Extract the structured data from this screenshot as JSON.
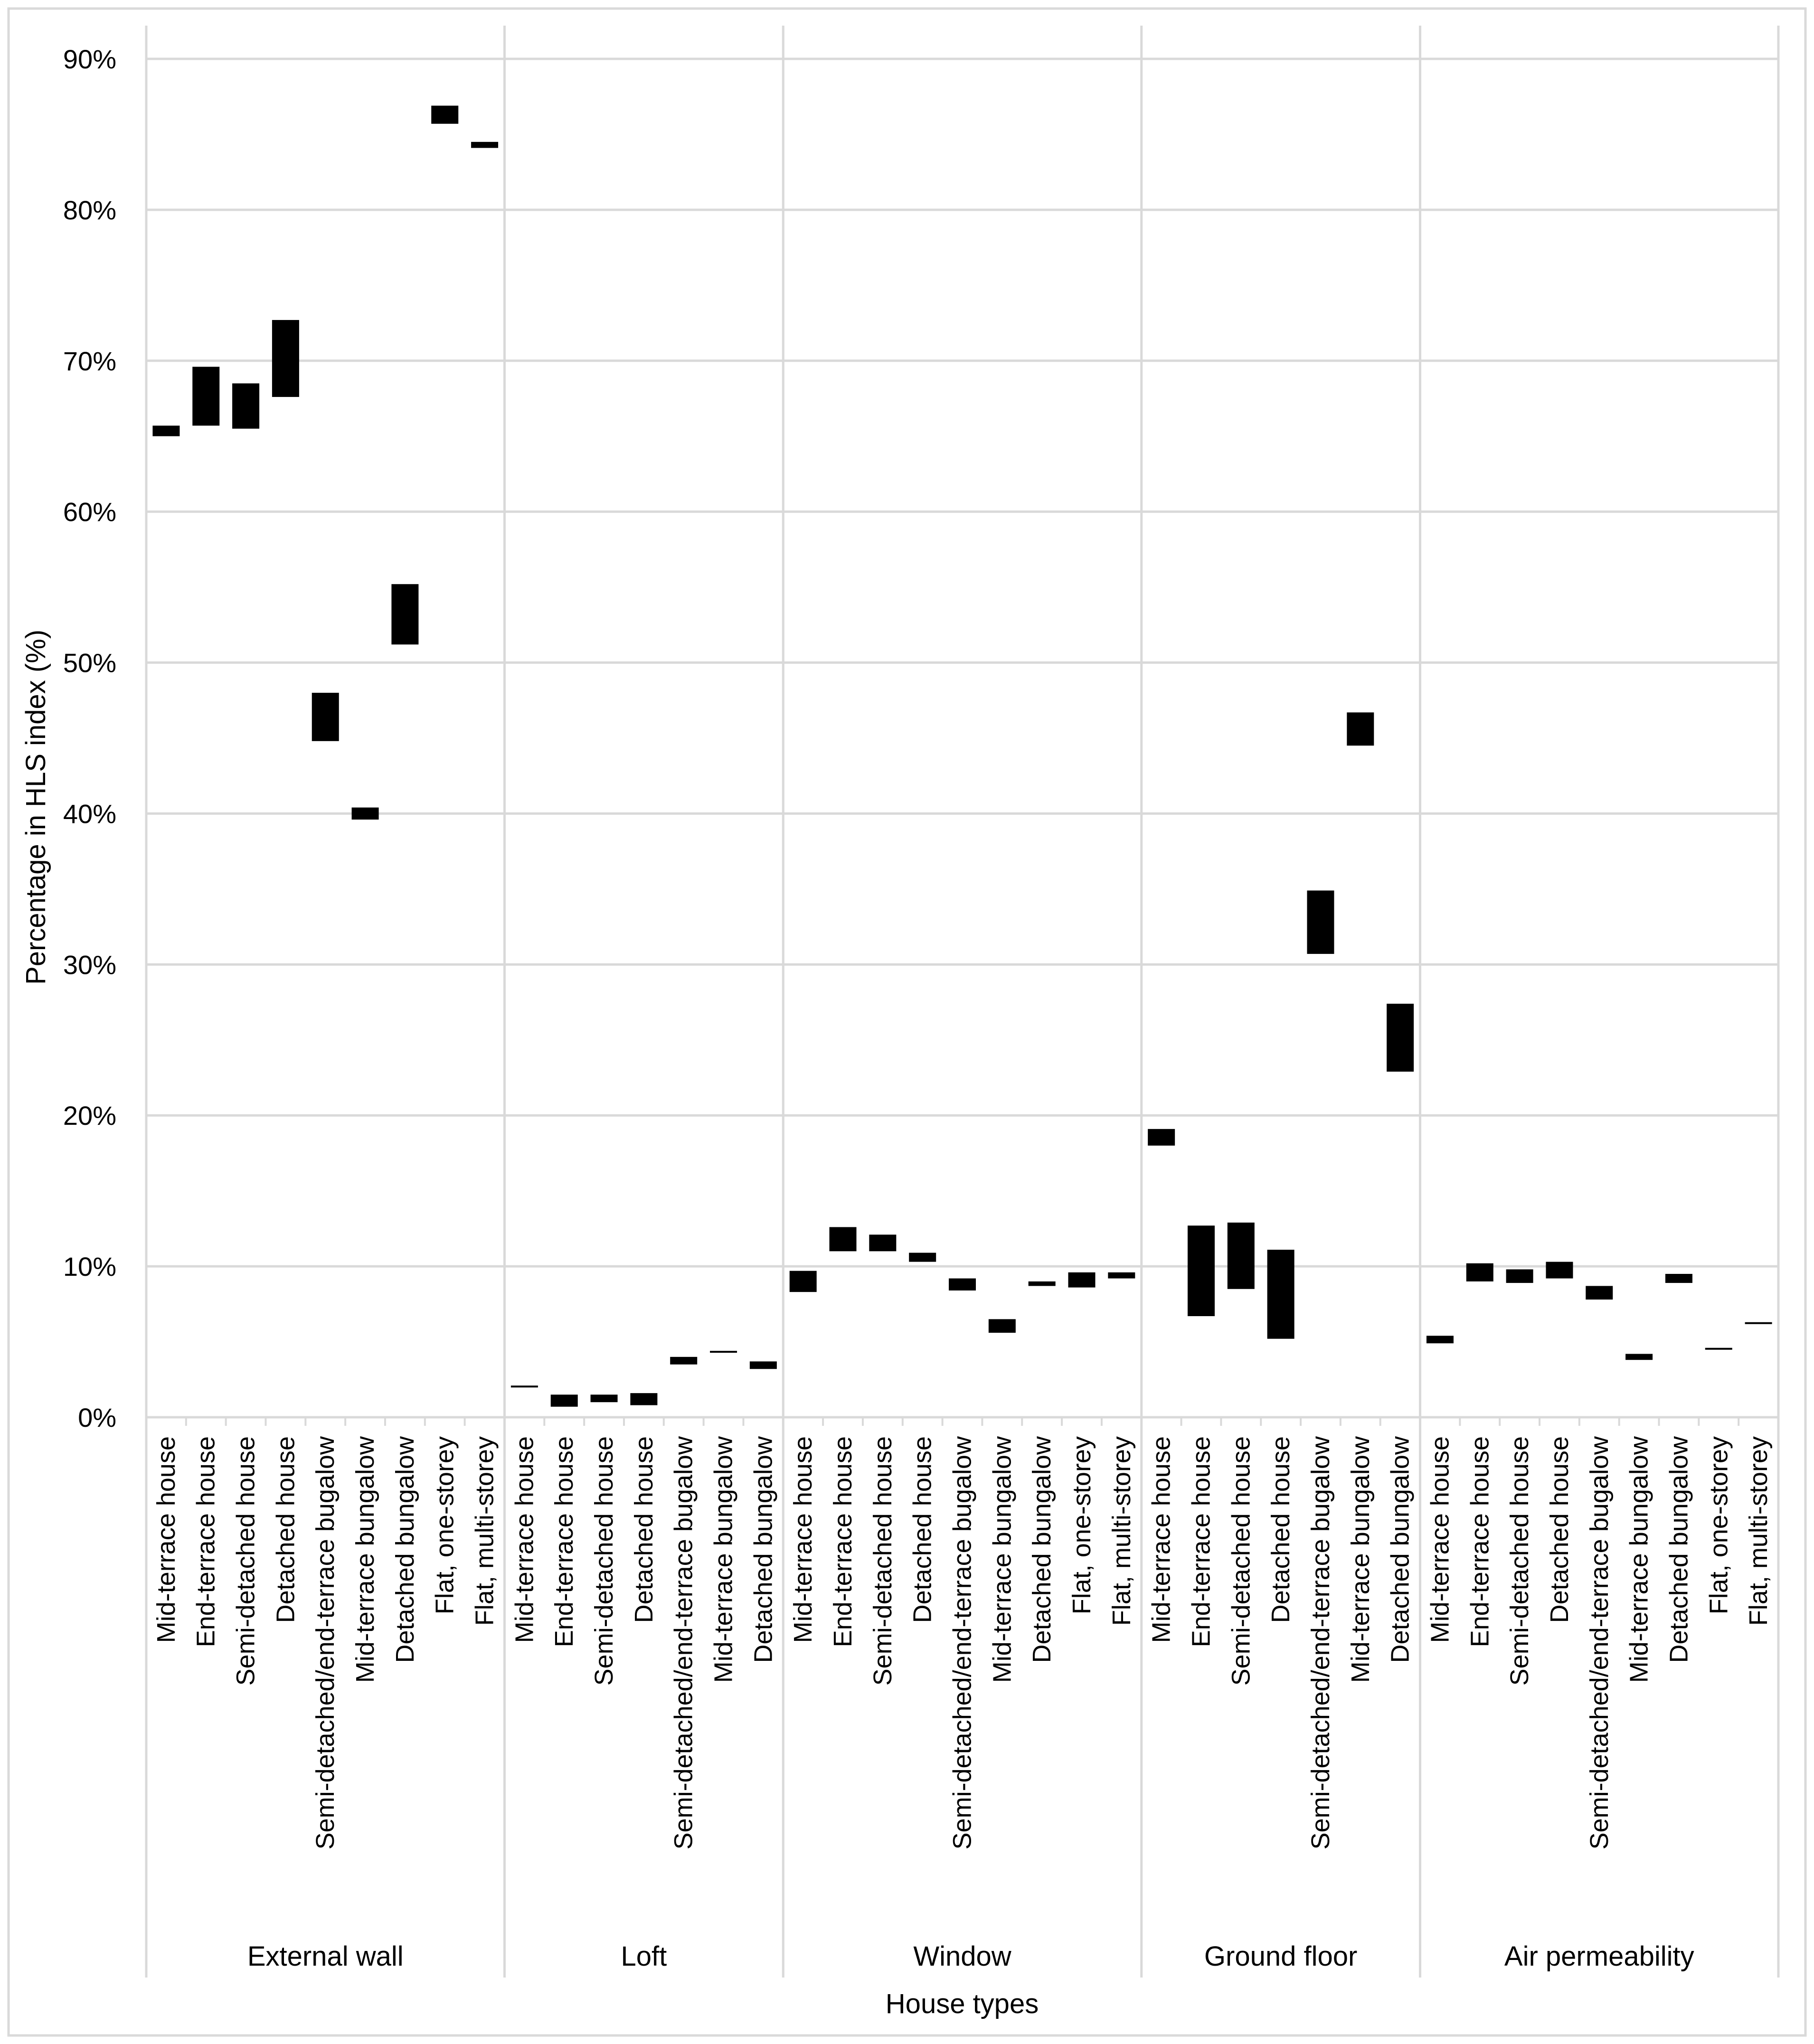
{
  "chart_data": {
    "type": "floating-bar",
    "title": "",
    "xlabel": "House types",
    "ylabel": "Percentage in HLS index (%)",
    "ylim": [
      0,
      90
    ],
    "yticks": [
      "0%",
      "10%",
      "20%",
      "30%",
      "40%",
      "50%",
      "60%",
      "70%",
      "80%",
      "90%"
    ],
    "grid": true,
    "bar_color": "#000000",
    "grid_color": "#d9d9d9",
    "groups": [
      {
        "name": "External wall",
        "categories": [
          {
            "label": "Mid-terrace house",
            "low": 65.0,
            "high": 65.7
          },
          {
            "label": "End-terrace house",
            "low": 65.7,
            "high": 69.6
          },
          {
            "label": "Semi-detached house",
            "low": 65.5,
            "high": 68.5
          },
          {
            "label": "Detached house",
            "low": 67.6,
            "high": 72.7
          },
          {
            "label": "Semi-detached/end-terrace bugalow",
            "low": 44.8,
            "high": 48.0
          },
          {
            "label": "Mid-terrace bungalow",
            "low": 39.6,
            "high": 40.4
          },
          {
            "label": "Detached bungalow",
            "low": 51.2,
            "high": 55.2
          },
          {
            "label": "Flat, one-storey",
            "low": 85.7,
            "high": 86.9
          },
          {
            "label": "Flat, multi-storey",
            "low": 84.1,
            "high": 84.5
          }
        ]
      },
      {
        "name": "Loft",
        "categories": [
          {
            "label": "Mid-terrace house",
            "low": 2.0,
            "high": 2.1
          },
          {
            "label": "End-terrace house",
            "low": 0.7,
            "high": 1.5
          },
          {
            "label": "Semi-detached house",
            "low": 1.0,
            "high": 1.5
          },
          {
            "label": "Detached house",
            "low": 0.8,
            "high": 1.6
          },
          {
            "label": "Semi-detached/end-terrace bugalow",
            "low": 3.5,
            "high": 4.0
          },
          {
            "label": "Mid-terrace bungalow",
            "low": 4.3,
            "high": 4.4
          },
          {
            "label": "Detached bungalow",
            "low": 3.2,
            "high": 3.7
          }
        ]
      },
      {
        "name": "Window",
        "categories": [
          {
            "label": "Mid-terrace house",
            "low": 8.3,
            "high": 9.7
          },
          {
            "label": "End-terrace house",
            "low": 11.0,
            "high": 12.6
          },
          {
            "label": "Semi-detached house",
            "low": 11.0,
            "high": 12.1
          },
          {
            "label": "Detached house",
            "low": 10.3,
            "high": 10.9
          },
          {
            "label": "Semi-detached/end-terrace bugalow",
            "low": 8.4,
            "high": 9.2
          },
          {
            "label": "Mid-terrace bungalow",
            "low": 5.6,
            "high": 6.5
          },
          {
            "label": "Detached bungalow",
            "low": 8.7,
            "high": 9.0
          },
          {
            "label": "Flat, one-storey",
            "low": 8.6,
            "high": 9.6
          },
          {
            "label": "Flat, multi-storey",
            "low": 9.2,
            "high": 9.6
          }
        ]
      },
      {
        "name": "Ground floor",
        "categories": [
          {
            "label": "Mid-terrace house",
            "low": 18.0,
            "high": 19.1
          },
          {
            "label": "End-terrace house",
            "low": 6.7,
            "high": 12.7
          },
          {
            "label": "Semi-detached house",
            "low": 8.5,
            "high": 12.9
          },
          {
            "label": "Detached house",
            "low": 5.2,
            "high": 11.1
          },
          {
            "label": "Semi-detached/end-terrace bugalow",
            "low": 30.7,
            "high": 34.9
          },
          {
            "label": "Mid-terrace bungalow",
            "low": 44.5,
            "high": 46.7
          },
          {
            "label": "Detached bungalow",
            "low": 22.9,
            "high": 27.4
          }
        ]
      },
      {
        "name": "Air permeability",
        "categories": [
          {
            "label": "Mid-terrace house",
            "low": 4.9,
            "high": 5.4
          },
          {
            "label": "End-terrace house",
            "low": 9.0,
            "high": 10.2
          },
          {
            "label": "Semi-detached house",
            "low": 8.9,
            "high": 9.8
          },
          {
            "label": "Detached house",
            "low": 9.2,
            "high": 10.3
          },
          {
            "label": "Semi-detached/end-terrace bugalow",
            "low": 7.8,
            "high": 8.7
          },
          {
            "label": "Mid-terrace bungalow",
            "low": 3.8,
            "high": 4.2
          },
          {
            "label": "Detached bungalow",
            "low": 8.9,
            "high": 9.5
          },
          {
            "label": "Flat, one-storey",
            "low": 4.5,
            "high": 4.6
          },
          {
            "label": "Flat, multi-storey",
            "low": 6.2,
            "high": 6.3
          }
        ]
      }
    ]
  }
}
